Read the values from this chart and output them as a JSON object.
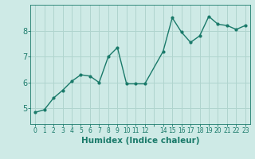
{
  "x": [
    0,
    1,
    2,
    3,
    4,
    5,
    6,
    7,
    8,
    9,
    10,
    11,
    12,
    14,
    15,
    16,
    17,
    18,
    19,
    20,
    21,
    22,
    23
  ],
  "y": [
    4.85,
    4.95,
    5.4,
    5.7,
    6.05,
    6.3,
    6.25,
    6.0,
    7.0,
    7.35,
    5.95,
    5.95,
    5.95,
    7.2,
    8.5,
    7.95,
    7.55,
    7.8,
    8.55,
    8.25,
    8.2,
    8.05,
    8.2
  ],
  "line_color": "#1a7a6a",
  "marker": "o",
  "marker_size": 2.0,
  "linewidth": 1.0,
  "bg_color": "#ceeae6",
  "grid_color": "#b0d4ce",
  "xlabel": "Humidex (Indice chaleur)",
  "xlabel_fontsize": 7.5,
  "yticks": [
    5,
    6,
    7,
    8
  ],
  "ylim": [
    4.4,
    9.0
  ],
  "xlim": [
    -0.5,
    23.5
  ]
}
